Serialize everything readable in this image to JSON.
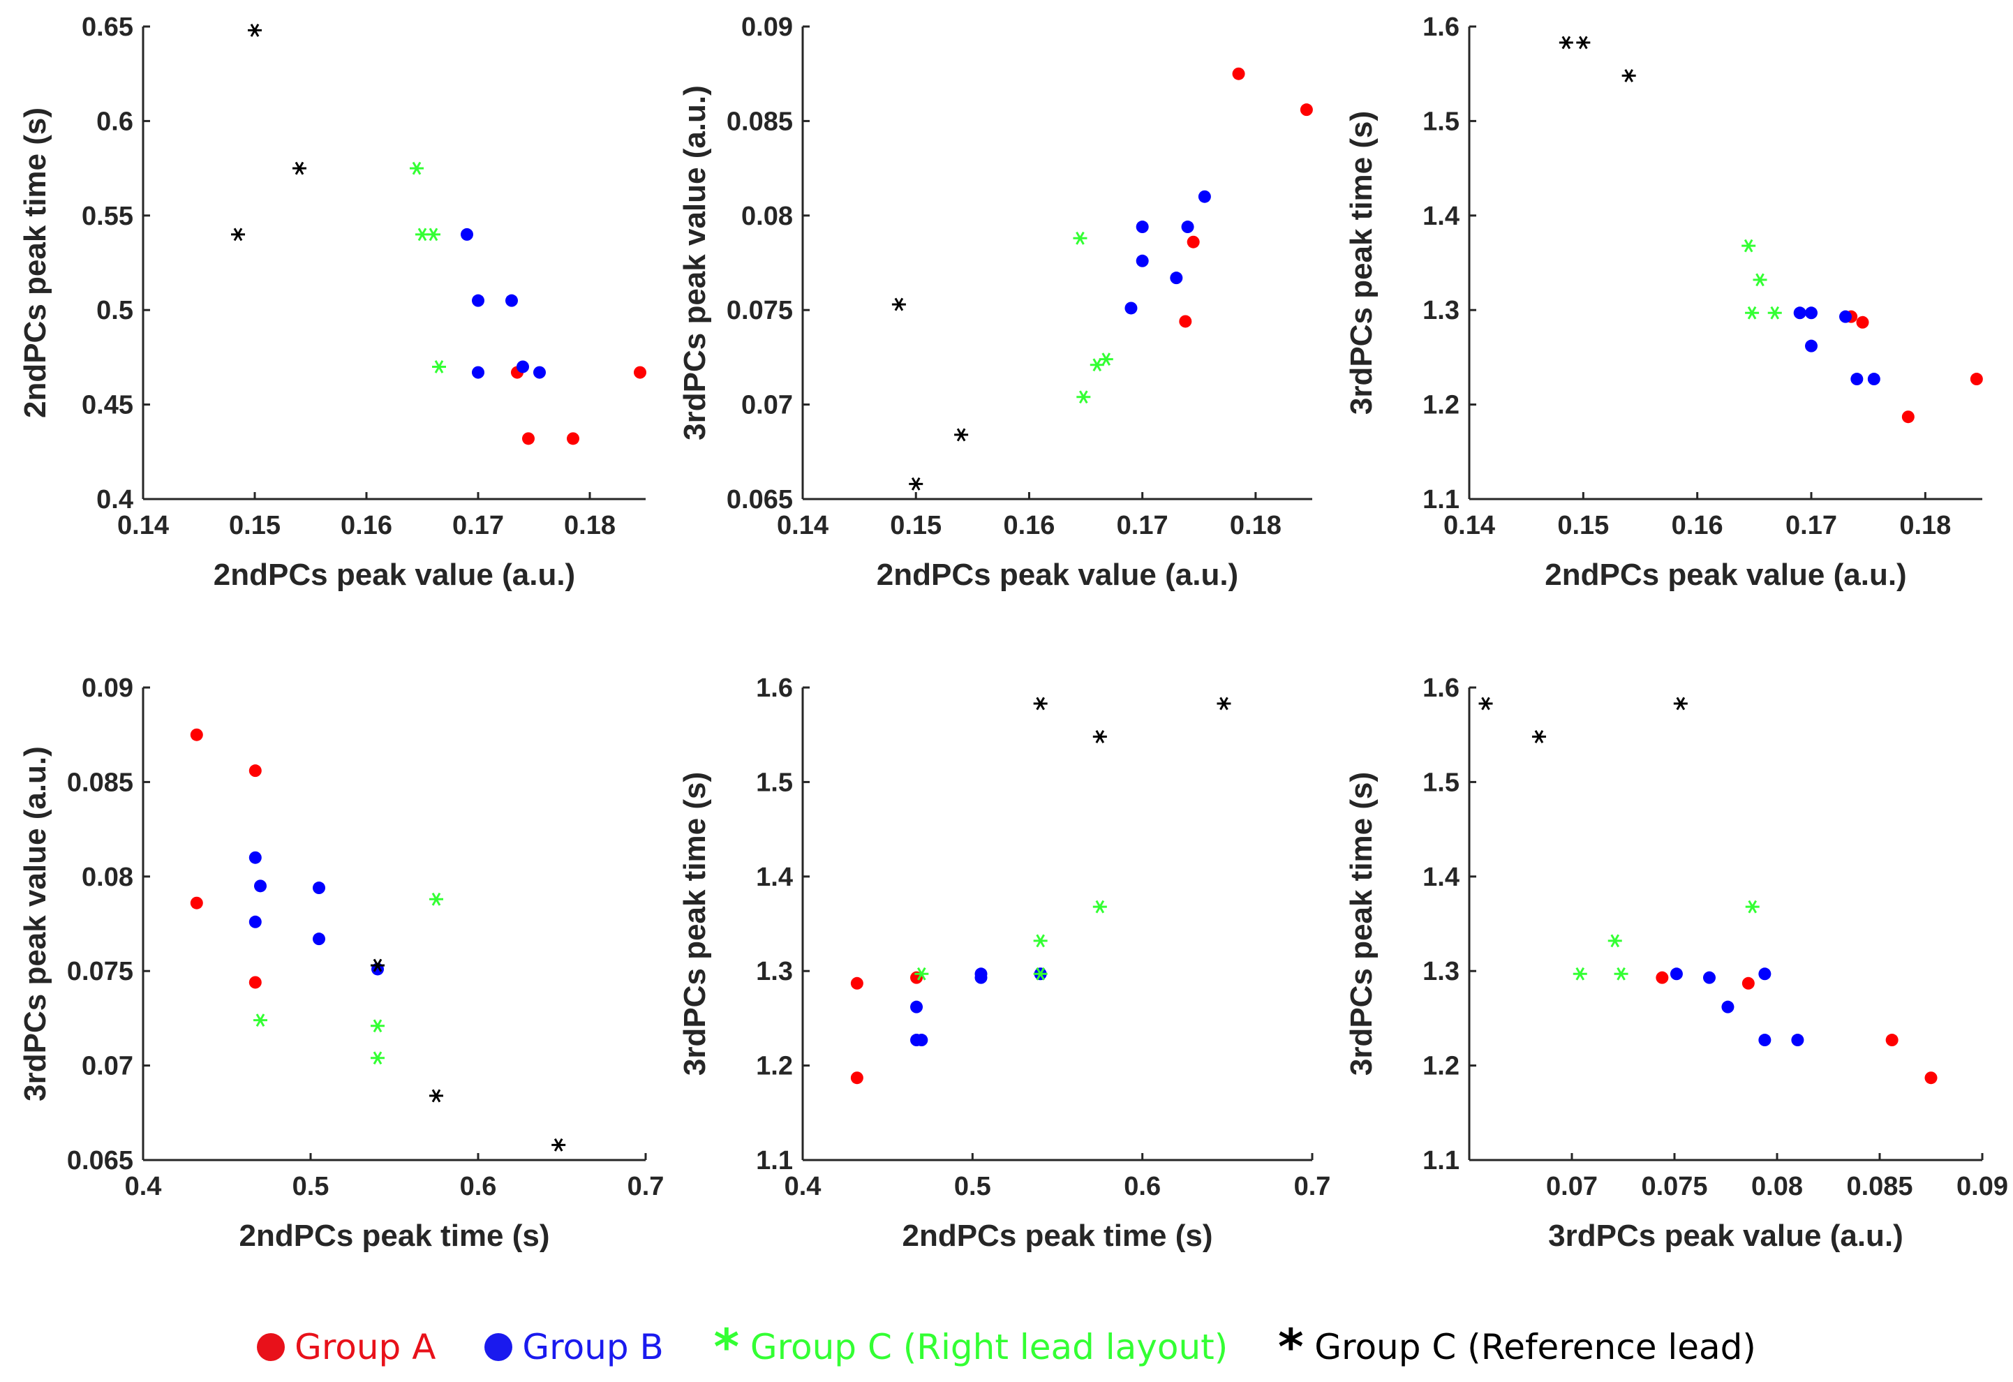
{
  "colors": {
    "groupA": "#ff0000",
    "groupB": "#0000ff",
    "groupC_right": "#33ff33",
    "groupC_ref": "#000000",
    "axis": "#262626"
  },
  "legend": {
    "items": [
      {
        "key": "A",
        "label": "Group A",
        "marker": "dot",
        "color": "#e8111a"
      },
      {
        "key": "B",
        "label": "Group B",
        "marker": "dot",
        "color": "#1a1aee"
      },
      {
        "key": "CR",
        "label": "Group C (Right lead layout)",
        "marker": "star",
        "color": "#33ff33"
      },
      {
        "key": "CF",
        "label": "Group C (Reference lead)",
        "marker": "star",
        "color": "#000000"
      }
    ]
  },
  "chart_data": [
    {
      "type": "scatter",
      "xlabel": "2ndPCs peak value (a.u.)",
      "ylabel": "2ndPCs peak time (s)",
      "xlim": [
        0.14,
        0.185
      ],
      "ylim": [
        0.4,
        0.65
      ],
      "xticks": [
        0.14,
        0.15,
        0.16,
        0.17,
        0.18
      ],
      "xtick_labels": [
        "0.14",
        "0.15",
        "0.16",
        "0.17",
        "0.18"
      ],
      "yticks": [
        0.4,
        0.45,
        0.5,
        0.55,
        0.6,
        0.65
      ],
      "ytick_labels": [
        "0.4",
        "0.45",
        "0.5",
        "0.55",
        "0.6",
        "0.65"
      ],
      "series": [
        {
          "name": "Group A",
          "points": [
            [
              0.1735,
              0.467
            ],
            [
              0.1745,
              0.432
            ],
            [
              0.1785,
              0.432
            ],
            [
              0.1845,
              0.467
            ]
          ]
        },
        {
          "name": "Group B",
          "points": [
            [
              0.169,
              0.54
            ],
            [
              0.17,
              0.505
            ],
            [
              0.173,
              0.505
            ],
            [
              0.17,
              0.467
            ],
            [
              0.174,
              0.47
            ],
            [
              0.1755,
              0.467
            ]
          ]
        },
        {
          "name": "Group C (Right lead layout)",
          "points": [
            [
              0.1645,
              0.575
            ],
            [
              0.165,
              0.54
            ],
            [
              0.166,
              0.54
            ],
            [
              0.1665,
              0.47
            ]
          ]
        },
        {
          "name": "Group C (Reference lead)",
          "points": [
            [
              0.15,
              0.648
            ],
            [
              0.154,
              0.575
            ],
            [
              0.1485,
              0.54
            ]
          ]
        }
      ]
    },
    {
      "type": "scatter",
      "xlabel": "2ndPCs peak value (a.u.)",
      "ylabel": "3rdPCs peak value (a.u.)",
      "xlim": [
        0.14,
        0.185
      ],
      "ylim": [
        0.065,
        0.09
      ],
      "xticks": [
        0.14,
        0.15,
        0.16,
        0.17,
        0.18
      ],
      "xtick_labels": [
        "0.14",
        "0.15",
        "0.16",
        "0.17",
        "0.18"
      ],
      "yticks": [
        0.065,
        0.07,
        0.075,
        0.08,
        0.085,
        0.09
      ],
      "ytick_labels": [
        "0.065",
        "0.07",
        "0.075",
        "0.08",
        "0.085",
        "0.09"
      ],
      "series": [
        {
          "name": "Group A",
          "points": [
            [
              0.1785,
              0.0875
            ],
            [
              0.1845,
              0.0856
            ],
            [
              0.1745,
              0.0786
            ],
            [
              0.1738,
              0.0744
            ]
          ]
        },
        {
          "name": "Group B",
          "points": [
            [
              0.1755,
              0.081
            ],
            [
              0.17,
              0.0794
            ],
            [
              0.174,
              0.0794
            ],
            [
              0.17,
              0.0776
            ],
            [
              0.173,
              0.0767
            ],
            [
              0.169,
              0.0751
            ]
          ]
        },
        {
          "name": "Group C (Right lead layout)",
          "points": [
            [
              0.1645,
              0.0788
            ],
            [
              0.1668,
              0.0724
            ],
            [
              0.166,
              0.0721
            ],
            [
              0.1648,
              0.0704
            ]
          ]
        },
        {
          "name": "Group C (Reference lead)",
          "points": [
            [
              0.1485,
              0.0753
            ],
            [
              0.154,
              0.0684
            ],
            [
              0.15,
              0.0658
            ]
          ]
        }
      ]
    },
    {
      "type": "scatter",
      "xlabel": "2ndPCs peak value (a.u.)",
      "ylabel": "3rdPCs peak time (s)",
      "xlim": [
        0.14,
        0.185
      ],
      "ylim": [
        1.1,
        1.6
      ],
      "xticks": [
        0.14,
        0.15,
        0.16,
        0.17,
        0.18
      ],
      "xtick_labels": [
        "0.14",
        "0.15",
        "0.16",
        "0.17",
        "0.18"
      ],
      "yticks": [
        1.1,
        1.2,
        1.3,
        1.4,
        1.5,
        1.6
      ],
      "ytick_labels": [
        "1.1",
        "1.2",
        "1.3",
        "1.4",
        "1.5",
        "1.6"
      ],
      "series": [
        {
          "name": "Group A",
          "points": [
            [
              0.1735,
              1.293
            ],
            [
              0.1745,
              1.287
            ],
            [
              0.1785,
              1.187
            ],
            [
              0.1845,
              1.227
            ]
          ]
        },
        {
          "name": "Group B",
          "points": [
            [
              0.169,
              1.297
            ],
            [
              0.17,
              1.297
            ],
            [
              0.173,
              1.293
            ],
            [
              0.17,
              1.262
            ],
            [
              0.174,
              1.227
            ],
            [
              0.1755,
              1.227
            ]
          ]
        },
        {
          "name": "Group C (Right lead layout)",
          "points": [
            [
              0.1645,
              1.368
            ],
            [
              0.1655,
              1.332
            ],
            [
              0.1648,
              1.297
            ],
            [
              0.1668,
              1.297
            ]
          ]
        },
        {
          "name": "Group C (Reference lead)",
          "points": [
            [
              0.1485,
              1.583
            ],
            [
              0.15,
              1.583
            ],
            [
              0.154,
              1.548
            ]
          ]
        }
      ]
    },
    {
      "type": "scatter",
      "xlabel": "2ndPCs peak time (s)",
      "ylabel": "3rdPCs peak value (a.u.)",
      "xlim": [
        0.4,
        0.7
      ],
      "ylim": [
        0.065,
        0.09
      ],
      "xticks": [
        0.4,
        0.5,
        0.6,
        0.7
      ],
      "xtick_labels": [
        "0.4",
        "0.5",
        "0.6",
        "0.7"
      ],
      "yticks": [
        0.065,
        0.07,
        0.075,
        0.08,
        0.085,
        0.09
      ],
      "ytick_labels": [
        "0.065",
        "0.07",
        "0.075",
        "0.08",
        "0.085",
        "0.09"
      ],
      "series": [
        {
          "name": "Group A",
          "points": [
            [
              0.432,
              0.0875
            ],
            [
              0.467,
              0.0856
            ],
            [
              0.432,
              0.0786
            ],
            [
              0.467,
              0.0744
            ]
          ]
        },
        {
          "name": "Group B",
          "points": [
            [
              0.467,
              0.081
            ],
            [
              0.47,
              0.0795
            ],
            [
              0.505,
              0.0794
            ],
            [
              0.467,
              0.0776
            ],
            [
              0.505,
              0.0767
            ],
            [
              0.54,
              0.0751
            ]
          ]
        },
        {
          "name": "Group C (Right lead layout)",
          "points": [
            [
              0.575,
              0.0788
            ],
            [
              0.47,
              0.0724
            ],
            [
              0.54,
              0.0721
            ],
            [
              0.54,
              0.0704
            ]
          ]
        },
        {
          "name": "Group C (Reference lead)",
          "points": [
            [
              0.54,
              0.0753
            ],
            [
              0.575,
              0.0684
            ],
            [
              0.648,
              0.0658
            ]
          ]
        }
      ]
    },
    {
      "type": "scatter",
      "xlabel": "2ndPCs peak time (s)",
      "ylabel": "3rdPCs peak time (s)",
      "xlim": [
        0.4,
        0.7
      ],
      "ylim": [
        1.1,
        1.6
      ],
      "xticks": [
        0.4,
        0.5,
        0.6,
        0.7
      ],
      "xtick_labels": [
        "0.4",
        "0.5",
        "0.6",
        "0.7"
      ],
      "yticks": [
        1.1,
        1.2,
        1.3,
        1.4,
        1.5,
        1.6
      ],
      "ytick_labels": [
        "1.1",
        "1.2",
        "1.3",
        "1.4",
        "1.5",
        "1.6"
      ],
      "series": [
        {
          "name": "Group A",
          "points": [
            [
              0.432,
              1.287
            ],
            [
              0.467,
              1.293
            ],
            [
              0.432,
              1.187
            ]
          ]
        },
        {
          "name": "Group B",
          "points": [
            [
              0.467,
              1.262
            ],
            [
              0.505,
              1.297
            ],
            [
              0.505,
              1.293
            ],
            [
              0.54,
              1.297
            ],
            [
              0.467,
              1.227
            ],
            [
              0.47,
              1.227
            ]
          ]
        },
        {
          "name": "Group C (Right lead layout)",
          "points": [
            [
              0.575,
              1.368
            ],
            [
              0.54,
              1.332
            ],
            [
              0.54,
              1.297
            ],
            [
              0.47,
              1.297
            ]
          ]
        },
        {
          "name": "Group C (Reference lead)",
          "points": [
            [
              0.54,
              1.583
            ],
            [
              0.648,
              1.583
            ],
            [
              0.575,
              1.548
            ]
          ]
        }
      ]
    },
    {
      "type": "scatter",
      "xlabel": "3rdPCs peak value (a.u.)",
      "ylabel": "3rdPCs peak time (s)",
      "xlim": [
        0.065,
        0.09
      ],
      "ylim": [
        1.1,
        1.6
      ],
      "xticks": [
        0.07,
        0.075,
        0.08,
        0.085,
        0.09
      ],
      "xtick_labels": [
        "0.07",
        "0.075",
        "0.08",
        "0.085",
        "0.09"
      ],
      "yticks": [
        1.1,
        1.2,
        1.3,
        1.4,
        1.5,
        1.6
      ],
      "ytick_labels": [
        "1.1",
        "1.2",
        "1.3",
        "1.4",
        "1.5",
        "1.6"
      ],
      "series": [
        {
          "name": "Group A",
          "points": [
            [
              0.0744,
              1.293
            ],
            [
              0.0786,
              1.287
            ],
            [
              0.0856,
              1.227
            ],
            [
              0.0875,
              1.187
            ]
          ]
        },
        {
          "name": "Group B",
          "points": [
            [
              0.0751,
              1.297
            ],
            [
              0.0767,
              1.293
            ],
            [
              0.0794,
              1.297
            ],
            [
              0.0776,
              1.262
            ],
            [
              0.0794,
              1.227
            ],
            [
              0.081,
              1.227
            ]
          ]
        },
        {
          "name": "Group C (Right lead layout)",
          "points": [
            [
              0.0704,
              1.297
            ],
            [
              0.0721,
              1.332
            ],
            [
              0.0724,
              1.297
            ],
            [
              0.0788,
              1.368
            ]
          ]
        },
        {
          "name": "Group C (Reference lead)",
          "points": [
            [
              0.0658,
              1.583
            ],
            [
              0.0753,
              1.583
            ],
            [
              0.0684,
              1.548
            ]
          ]
        }
      ]
    }
  ]
}
